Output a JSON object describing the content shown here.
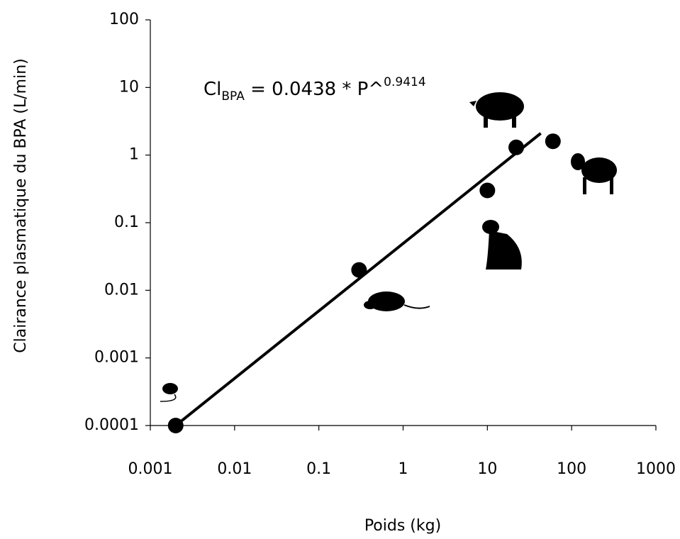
{
  "chart_data": {
    "type": "scatter",
    "x_label": "Poids (kg)",
    "y_label": "Clairance plasmatique du BPA (L/min)",
    "annotation": {
      "text": "Cl",
      "subscript": "BPA",
      "rest": " = 0.0438 * P^",
      "superscript": "0.9414"
    },
    "log_x": true,
    "log_y": true,
    "xlim": [
      0.001,
      1000
    ],
    "xticks": [
      0.001,
      0.01,
      0.1,
      1,
      10,
      100,
      1000
    ],
    "ylim": [
      0.0001,
      100
    ],
    "yticks": [
      0.0001,
      0.001,
      0.01,
      0.1,
      1,
      10,
      100
    ],
    "series": [
      {
        "type": "scatter",
        "color": "#000000",
        "x": [
          0.002,
          0.3,
          10,
          22,
          60
        ],
        "values": [
          0.0001,
          0.02,
          0.3,
          1.3,
          1.6
        ]
      },
      {
        "type": "line",
        "color": "#000000",
        "x": [
          0.002,
          43
        ],
        "values": [
          0.0001,
          2.1
        ]
      }
    ]
  }
}
